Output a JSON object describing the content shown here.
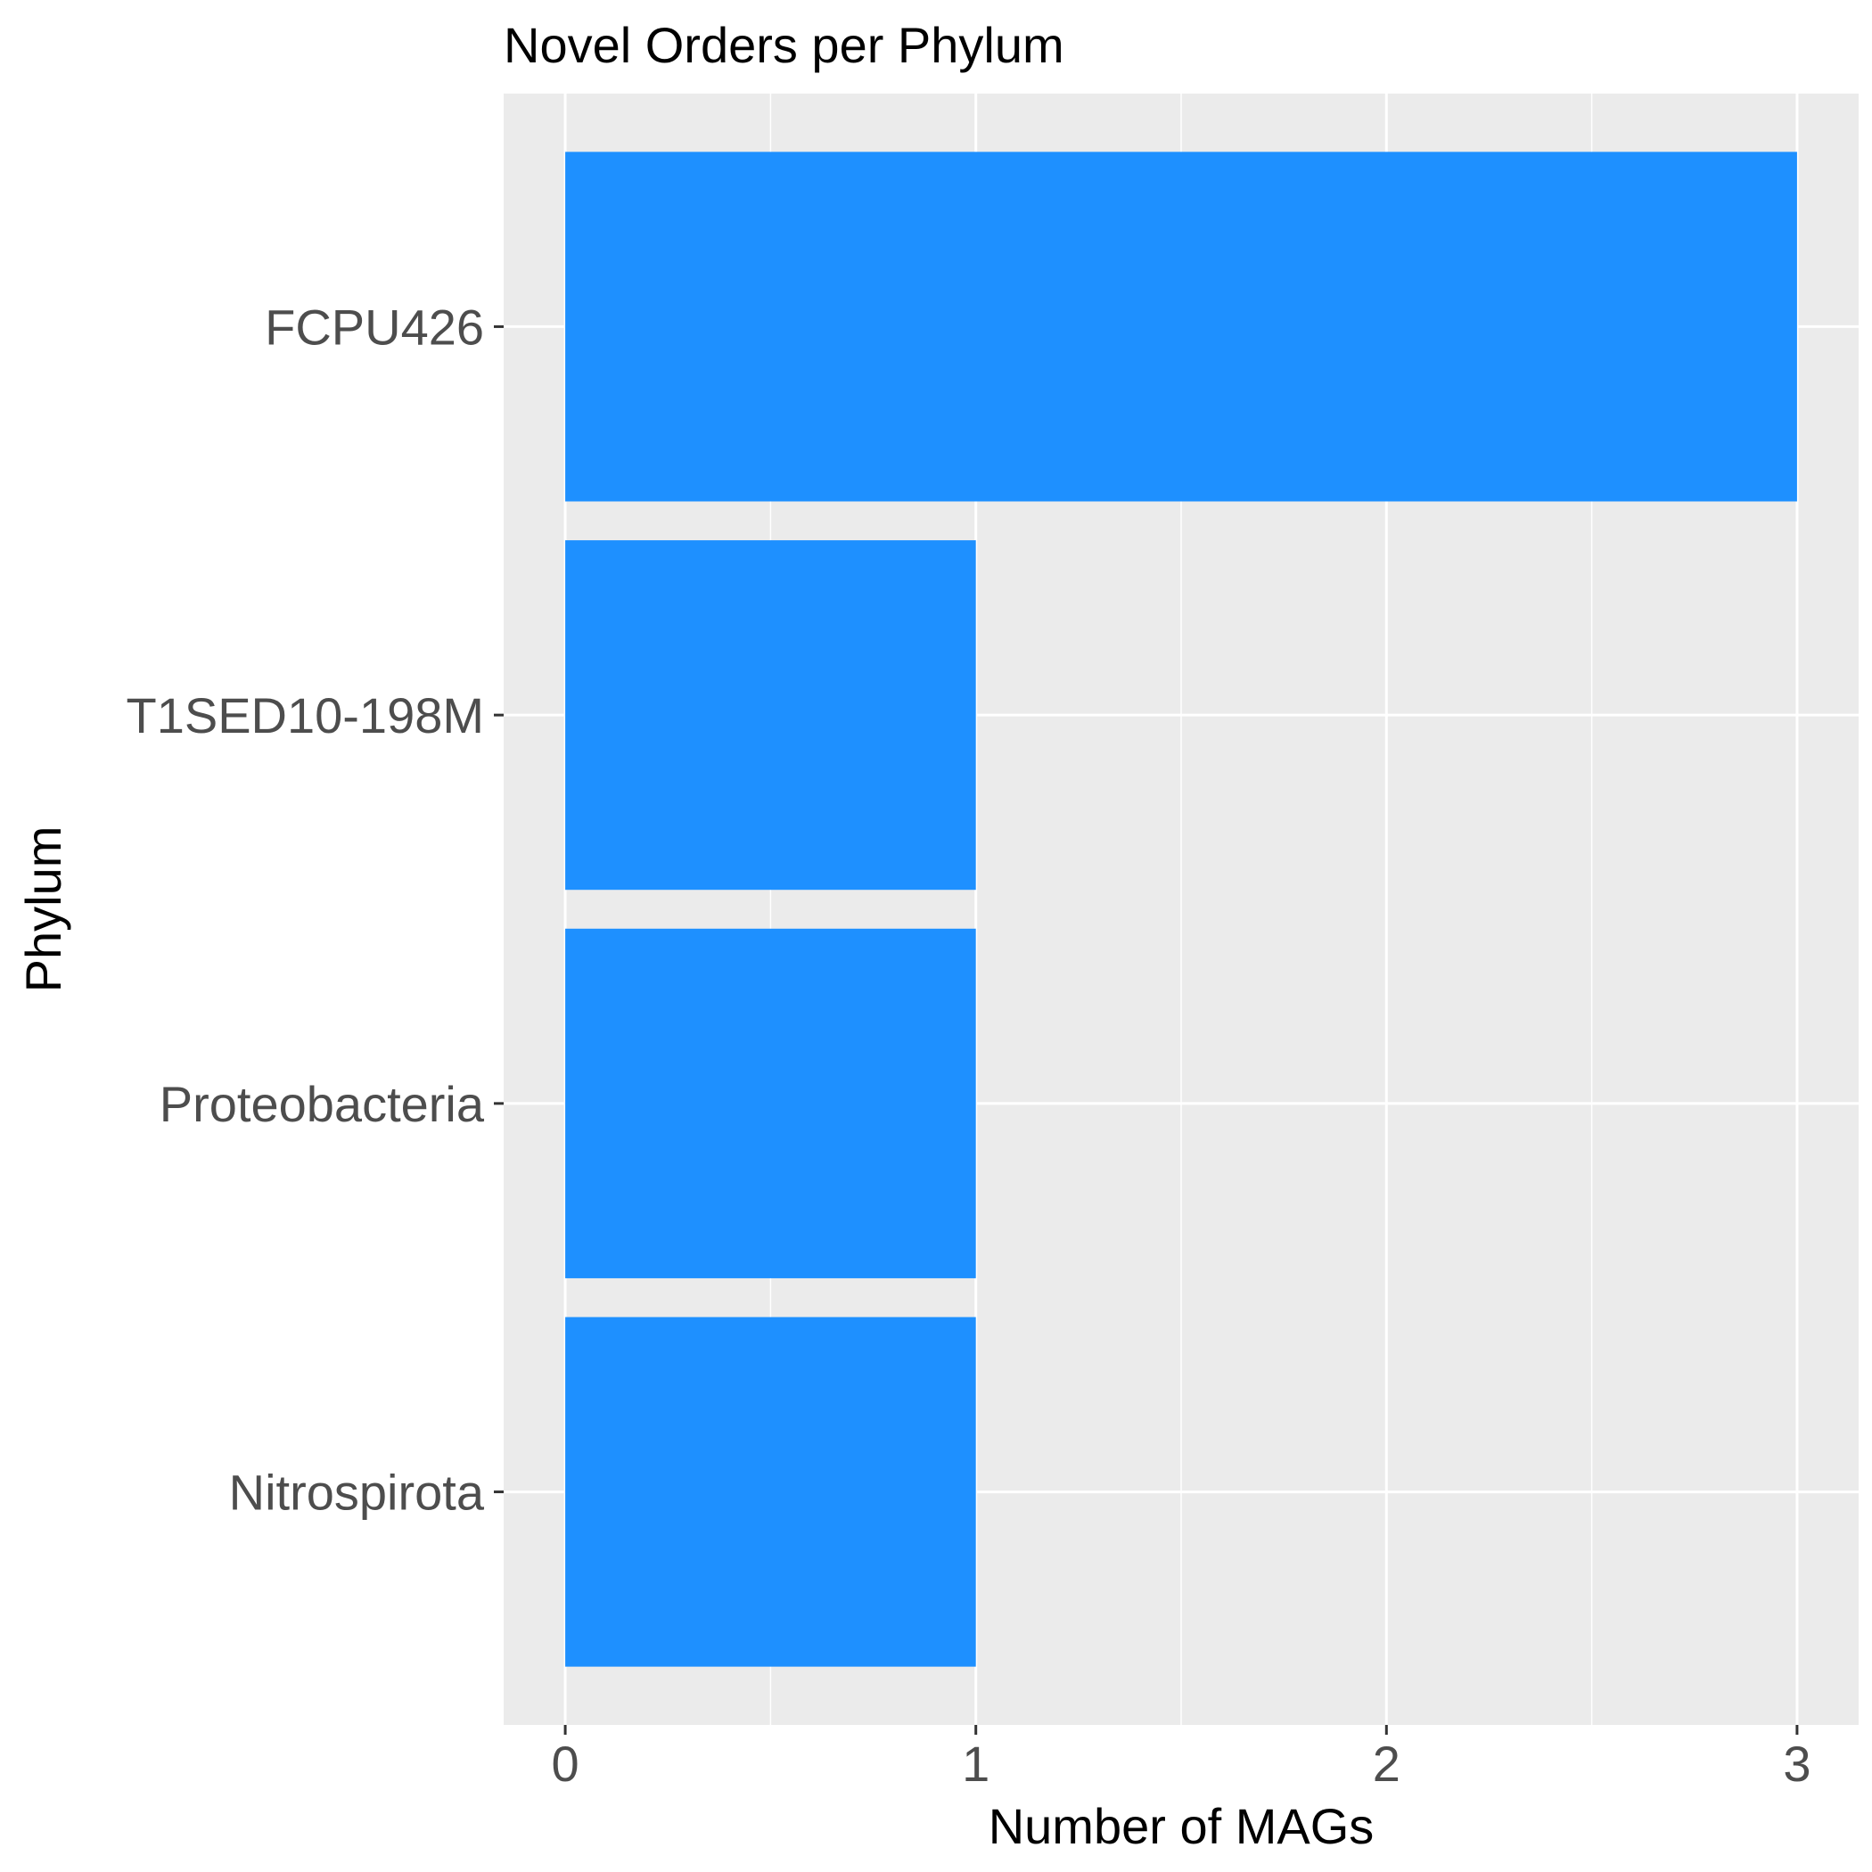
{
  "chart_data": {
    "type": "bar",
    "orientation": "horizontal",
    "title": "Novel Orders per Phylum",
    "xlabel": "Number of MAGs",
    "ylabel": "Phylum",
    "categories": [
      "FCPU426",
      "T1SED10-198M",
      "Proteobacteria",
      "Nitrospirota"
    ],
    "values": [
      3,
      1,
      1,
      1
    ],
    "xlim": [
      -0.15,
      3.15
    ],
    "x_ticks": [
      0,
      1,
      2,
      3
    ],
    "x_minor_ticks": [
      0.5,
      1.5,
      2.5
    ],
    "grid": true,
    "legend": "none",
    "colors": {
      "bar": "#1e90ff",
      "panel_background": "#ebebeb",
      "grid": "#ffffff",
      "tick_label": "#4d4d4d",
      "tick_mark": "#333333",
      "text": "#000000"
    }
  }
}
